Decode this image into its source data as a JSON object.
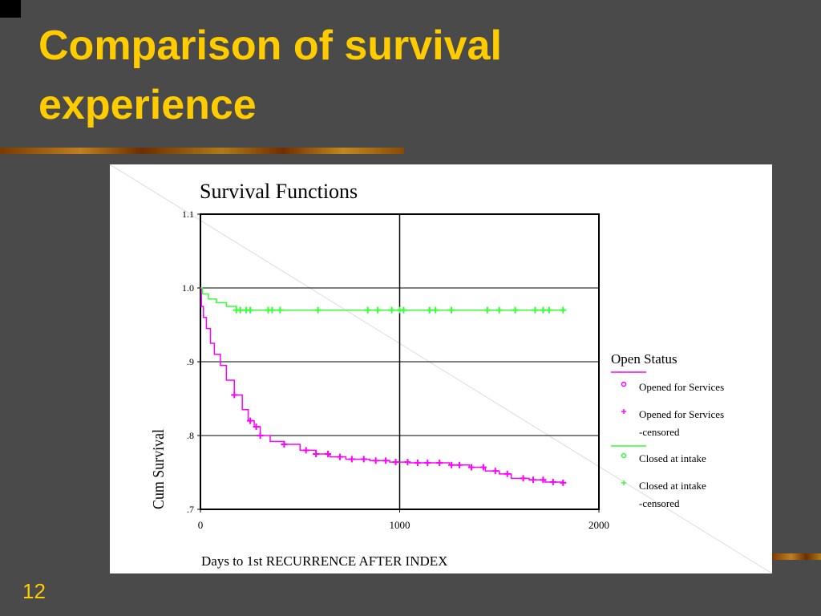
{
  "slide": {
    "title": "Comparison of survival experience",
    "number": "12"
  },
  "colors": {
    "background": "#4a4a4a",
    "title": "#ffcc00",
    "opened": "#ff00ff",
    "closed": "#33ff33"
  },
  "chart_data": {
    "type": "line",
    "title": "Survival Functions",
    "xlabel": "Days to 1st RECURRENCE AFTER INDEX",
    "ylabel": "Cum Survival",
    "xlim": [
      0,
      2000
    ],
    "ylim": [
      0.7,
      1.1
    ],
    "x_ticks": [
      {
        "value": 0,
        "label": "0"
      },
      {
        "value": 1000,
        "label": "1000"
      },
      {
        "value": 2000,
        "label": "2000"
      }
    ],
    "y_ticks": [
      {
        "value": 0.7,
        "label": ".7"
      },
      {
        "value": 0.8,
        "label": ".8"
      },
      {
        "value": 0.9,
        "label": ".9"
      },
      {
        "value": 1.0,
        "label": "1.0"
      },
      {
        "value": 1.1,
        "label": "1.1"
      }
    ],
    "grid": true,
    "legend": {
      "title": "Open Status",
      "position": "right",
      "entries": [
        {
          "label": "Opened for Services",
          "series": "opened",
          "marker": "circle"
        },
        {
          "label": "Opened for Services",
          "label2": "-censored",
          "series": "opened",
          "marker": "plus"
        },
        {
          "label": "Closed at intake",
          "series": "closed",
          "marker": "circle"
        },
        {
          "label": "Closed at intake",
          "label2": "-censored",
          "series": "closed",
          "marker": "plus"
        }
      ]
    },
    "series": [
      {
        "name": "Opened for Services",
        "color": "#ff00ff",
        "points": [
          [
            0,
            1.0
          ],
          [
            5,
            0.975
          ],
          [
            15,
            0.96
          ],
          [
            30,
            0.945
          ],
          [
            50,
            0.925
          ],
          [
            70,
            0.91
          ],
          [
            100,
            0.895
          ],
          [
            130,
            0.875
          ],
          [
            170,
            0.855
          ],
          [
            210,
            0.835
          ],
          [
            240,
            0.82
          ],
          [
            270,
            0.812
          ],
          [
            300,
            0.8
          ],
          [
            350,
            0.792
          ],
          [
            420,
            0.788
          ],
          [
            500,
            0.78
          ],
          [
            580,
            0.775
          ],
          [
            650,
            0.771
          ],
          [
            730,
            0.768
          ],
          [
            850,
            0.766
          ],
          [
            950,
            0.764
          ],
          [
            1050,
            0.763
          ],
          [
            1150,
            0.763
          ],
          [
            1250,
            0.76
          ],
          [
            1350,
            0.757
          ],
          [
            1430,
            0.752
          ],
          [
            1500,
            0.748
          ],
          [
            1560,
            0.742
          ],
          [
            1650,
            0.74
          ],
          [
            1730,
            0.737
          ],
          [
            1820,
            0.736
          ]
        ],
        "censored_x": [
          170,
          250,
          280,
          300,
          420,
          530,
          580,
          640,
          700,
          760,
          820,
          880,
          930,
          980,
          1040,
          1090,
          1140,
          1200,
          1260,
          1300,
          1360,
          1420,
          1480,
          1540,
          1620,
          1670,
          1720,
          1770,
          1820
        ]
      },
      {
        "name": "Closed at intake",
        "color": "#33ff33",
        "points": [
          [
            0,
            1.0
          ],
          [
            10,
            0.992
          ],
          [
            40,
            0.985
          ],
          [
            80,
            0.98
          ],
          [
            130,
            0.975
          ],
          [
            180,
            0.97
          ],
          [
            1820,
            0.97
          ]
        ],
        "censored_x": [
          180,
          200,
          230,
          250,
          340,
          360,
          400,
          590,
          840,
          890,
          960,
          1000,
          1020,
          1150,
          1180,
          1260,
          1440,
          1500,
          1580,
          1680,
          1720,
          1750,
          1820
        ]
      }
    ]
  }
}
